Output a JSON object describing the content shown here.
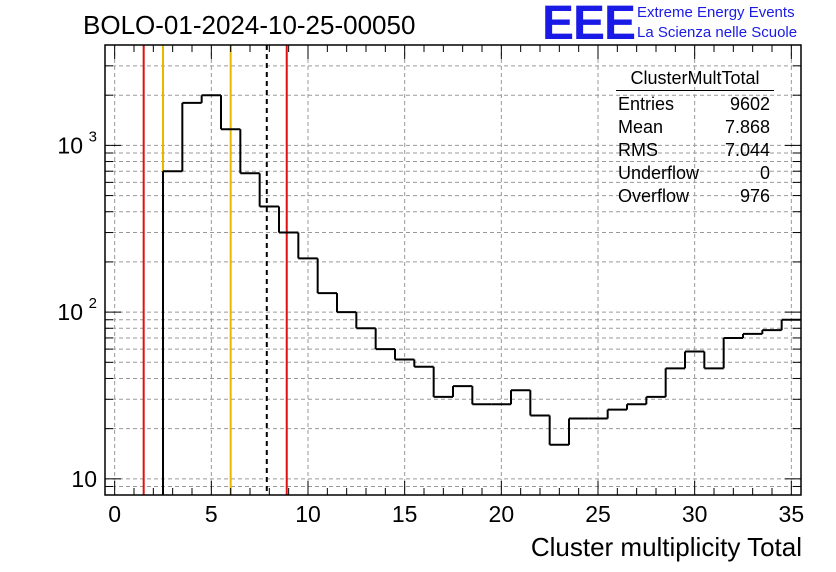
{
  "title": "BOLO-01-2024-10-25-00050",
  "logo": {
    "mark": "EEE",
    "line1": "Extreme Energy Events",
    "line2": "La Scienza nelle Scuole",
    "color": "#1a1ae6"
  },
  "stats": {
    "name": "ClusterMultTotal",
    "rows": [
      {
        "label": "Entries",
        "value": "9602"
      },
      {
        "label": "Mean",
        "value": "7.868"
      },
      {
        "label": "RMS",
        "value": "7.044"
      },
      {
        "label": "Underflow",
        "value": "0"
      },
      {
        "label": "Overflow",
        "value": "976"
      }
    ]
  },
  "chart_data": {
    "type": "histogram",
    "xlabel": "Cluster multiplicity Total",
    "ylabel": "",
    "xlim": [
      -0.5,
      35.5
    ],
    "ylim": [
      8,
      4000
    ],
    "y_scale": "log",
    "grid": true,
    "legend": "top-right",
    "x_ticks": [
      0,
      5,
      10,
      15,
      20,
      25,
      30,
      35
    ],
    "y_ticks": [
      {
        "value": 10,
        "label": "10"
      },
      {
        "value": 100,
        "label": "10",
        "exp": "2"
      },
      {
        "value": 1000,
        "label": "10",
        "exp": "3"
      }
    ],
    "bin_width": 1,
    "bin_lows": [
      -0.5,
      0.5,
      1.5,
      2.5,
      3.5,
      4.5,
      5.5,
      6.5,
      7.5,
      8.5,
      9.5,
      10.5,
      11.5,
      12.5,
      13.5,
      14.5,
      15.5,
      16.5,
      17.5,
      18.5,
      19.5,
      20.5,
      21.5,
      22.5,
      23.5,
      24.5,
      25.5,
      26.5,
      27.5,
      28.5,
      29.5,
      30.5,
      31.5,
      32.5,
      33.5,
      34.5
    ],
    "counts": [
      0,
      0,
      0,
      700,
      1800,
      2000,
      1250,
      680,
      430,
      300,
      210,
      130,
      100,
      80,
      60,
      52,
      47,
      31,
      36,
      28,
      28,
      34,
      24,
      16,
      23,
      23,
      26,
      28,
      31,
      46,
      58,
      46,
      70,
      74,
      78,
      90
    ],
    "color": "#000000",
    "vlines": [
      {
        "x": 1.5,
        "color": "#e01010",
        "style": "solid"
      },
      {
        "x": 2.5,
        "color": "#e8b800",
        "style": "solid"
      },
      {
        "x": 6.0,
        "color": "#e8b800",
        "style": "solid"
      },
      {
        "x": 7.868,
        "color": "#000000",
        "style": "dashed"
      },
      {
        "x": 8.9,
        "color": "#e01010",
        "style": "solid"
      }
    ]
  }
}
